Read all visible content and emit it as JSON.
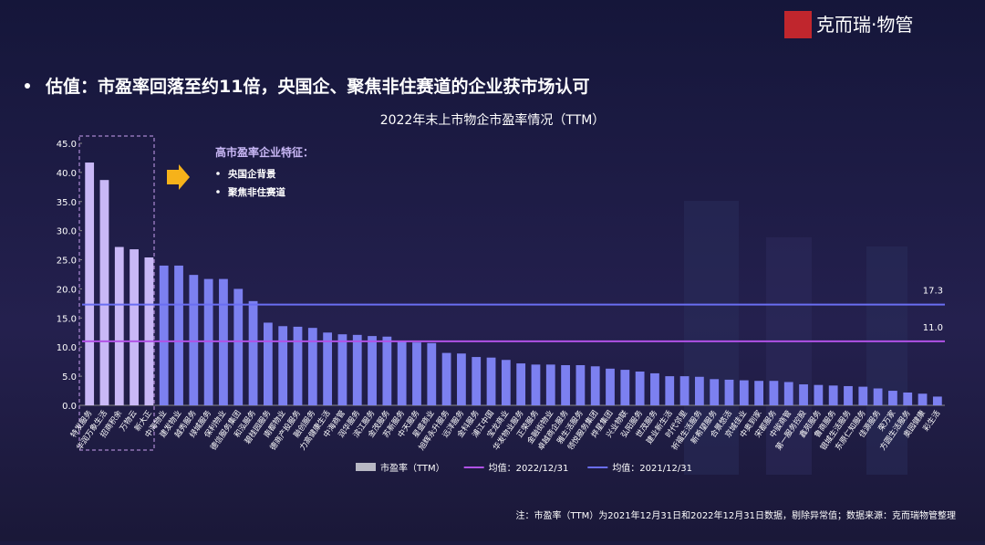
{
  "header": {
    "logo": "克而瑞·物管",
    "heading": "估值：市盈率回落至约11倍，央国企、聚焦非住赛道的企业获市场认可"
  },
  "chart_data": {
    "type": "bar",
    "title": "2022年末上市物企市盈率情况（TTM）",
    "categories": [
      "特发服务",
      "华润万象生活",
      "招商积余",
      "万物云",
      "新大正",
      "中海物业",
      "建发物业",
      "越秀服务",
      "绿城服务",
      "保利物业",
      "德信服务集团",
      "和泓服务",
      "碧桂园服务",
      "南都物业",
      "德商产投服务",
      "融创服务",
      "力高健康生活",
      "中海商管",
      "润华服务",
      "滨江服务",
      "金茂服务",
      "苏新服务",
      "中天服务",
      "星盛商业",
      "旭辉永升服务",
      "远洋服务",
      "金科服务",
      "浦江中国",
      "宝龙商业",
      "华发物业服务",
      "正荣服务",
      "金融街物业",
      "卓越商企服务",
      "雅生活服务",
      "领悦服务集团",
      "烨星集团",
      "兴业物联",
      "弘阳服务",
      "世茂服务",
      "建业新生活",
      "时代邻里",
      "祈福生活服务",
      "新希望服务",
      "合景悠活",
      "京城佳业",
      "中奥到家",
      "宋都服务",
      "中骏商管",
      "第一服务控股",
      "鑫苑服务",
      "鲁商服务",
      "银城生活服务",
      "东原仁知服务",
      "佳源服务",
      "荣万家",
      "方圆生活服务",
      "奥园健康",
      "彩生活"
    ],
    "series": [
      {
        "name": "市盈率（TTM）",
        "type": "bar",
        "color": "#7c80f0",
        "legend_color": "#b8b8c4",
        "colors": [
          "#c9b8f6",
          "#c9b8f6",
          "#c9b8f6",
          "#c9b8f6",
          "#c9b8f6",
          "#7c80f0",
          "#7c80f0",
          "#7c80f0",
          "#7c80f0",
          "#7c80f0",
          "#7c80f0",
          "#7c80f0",
          "#7c80f0",
          "#7c80f0",
          "#7c80f0",
          "#7c80f0",
          "#7c80f0",
          "#7c80f0",
          "#7c80f0",
          "#7c80f0",
          "#7c80f0",
          "#7c80f0",
          "#7c80f0",
          "#7c80f0",
          "#7c80f0",
          "#7c80f0",
          "#7c80f0",
          "#7c80f0",
          "#7c80f0",
          "#7c80f0",
          "#7c80f0",
          "#7c80f0",
          "#7c80f0",
          "#7c80f0",
          "#7c80f0",
          "#7c80f0",
          "#7c80f0",
          "#7c80f0",
          "#7c80f0",
          "#7c80f0",
          "#7c80f0",
          "#7c80f0",
          "#7c80f0",
          "#7c80f0",
          "#7c80f0",
          "#7c80f0",
          "#7c80f0",
          "#7c80f0",
          "#7c80f0",
          "#7c80f0",
          "#7c80f0",
          "#7c80f0",
          "#7c80f0",
          "#7c80f0",
          "#7c80f0",
          "#7c80f0",
          "#7c80f0",
          "#7c80f0"
        ],
        "values": [
          41.7,
          38.7,
          27.2,
          26.8,
          25.4,
          24.0,
          24.0,
          22.4,
          21.7,
          21.7,
          20.0,
          17.9,
          14.2,
          13.6,
          13.5,
          13.3,
          12.5,
          12.2,
          12.1,
          11.9,
          11.8,
          10.9,
          10.8,
          10.7,
          9.0,
          8.9,
          8.3,
          8.2,
          7.8,
          7.2,
          7.0,
          7.0,
          6.9,
          6.9,
          6.7,
          6.3,
          6.1,
          5.8,
          5.5,
          5.0,
          5.0,
          4.9,
          4.5,
          4.4,
          4.3,
          4.2,
          4.2,
          4.0,
          3.6,
          3.5,
          3.4,
          3.3,
          3.2,
          2.9,
          2.5,
          2.2,
          2.0,
          1.5
        ]
      },
      {
        "name": "均值：2022/12/31",
        "type": "hline",
        "color": "#b052e6",
        "value": 11.0,
        "value_label": "11.0"
      },
      {
        "name": "均值：2021/12/31",
        "type": "hline",
        "color": "#6a6ef2",
        "value": 17.3,
        "value_label": "17.3"
      }
    ],
    "ylim": [
      0,
      45
    ],
    "yticks": [
      {
        "value": 0,
        "label": "0.0"
      },
      {
        "value": 5,
        "label": "5.0"
      },
      {
        "value": 10,
        "label": "10.0"
      },
      {
        "value": 15,
        "label": "15.0"
      },
      {
        "value": 20,
        "label": "20.0"
      },
      {
        "value": 25,
        "label": "25.0"
      },
      {
        "value": 30,
        "label": "30.0"
      },
      {
        "value": 35,
        "label": "35.0"
      },
      {
        "value": 40,
        "label": "40.0"
      },
      {
        "value": 45,
        "label": "45.0"
      }
    ],
    "annotation": {
      "title": "高市盈率企业特征：",
      "items": [
        "央国企背景",
        "聚焦非住赛道"
      ]
    }
  },
  "footnote": "注：市盈率（TTM）为2021年12月31日和2022年12月31日数据，剔除异常值；数据来源：克而瑞物管整理"
}
